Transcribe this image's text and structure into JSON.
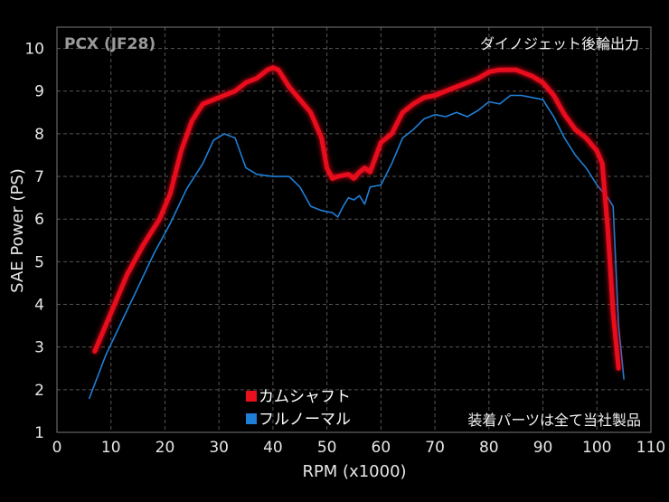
{
  "chart_data": {
    "type": "line",
    "title": "",
    "model_label": "PCX (JF28)",
    "top_note": "ダイノジェット後輪出力",
    "bottom_note": "装着パーツは全て当社製品",
    "xlabel": "RPM (x1000)",
    "ylabel": "SAE Power (PS)",
    "xlim": [
      0,
      110
    ],
    "ylim": [
      1,
      10.5
    ],
    "xticks": [
      "0",
      "10",
      "20",
      "30",
      "40",
      "50",
      "60",
      "70",
      "80",
      "90",
      "100",
      "110"
    ],
    "yticks": [
      "1",
      "2",
      "3",
      "4",
      "5",
      "6",
      "7",
      "8",
      "9",
      "10"
    ],
    "grid": true,
    "legend_position": "bottom-center",
    "series": [
      {
        "name": "カムシャフト",
        "color": "#e8101c",
        "x": [
          7,
          10,
          13,
          16,
          19,
          21,
          23,
          25,
          27,
          30,
          33,
          35,
          37,
          39,
          40,
          41,
          43,
          45,
          47,
          49,
          50,
          51,
          52,
          54,
          55,
          56,
          57,
          58,
          60,
          62,
          64,
          66,
          68,
          70,
          72,
          74,
          76,
          78,
          80,
          82,
          85,
          88,
          90,
          92,
          94,
          96,
          98,
          100,
          101,
          102,
          103,
          104
        ],
        "y": [
          2.9,
          3.8,
          4.7,
          5.4,
          6.0,
          6.6,
          7.6,
          8.3,
          8.7,
          8.85,
          9.0,
          9.2,
          9.3,
          9.5,
          9.55,
          9.5,
          9.1,
          8.8,
          8.5,
          7.9,
          7.2,
          6.95,
          7.0,
          7.05,
          6.95,
          7.1,
          7.2,
          7.1,
          7.8,
          8.0,
          8.5,
          8.7,
          8.85,
          8.9,
          9.0,
          9.1,
          9.2,
          9.3,
          9.45,
          9.5,
          9.5,
          9.35,
          9.2,
          8.9,
          8.45,
          8.1,
          7.9,
          7.6,
          7.3,
          5.8,
          3.8,
          2.5
        ]
      },
      {
        "name": "フルノーマル",
        "color": "#1f7fd6",
        "x": [
          6,
          9,
          12,
          15,
          18,
          21,
          24,
          27,
          29,
          31,
          33,
          35,
          37,
          40,
          43,
          45,
          47,
          49,
          51,
          52,
          53,
          54,
          55,
          56,
          57,
          58,
          60,
          62,
          64,
          66,
          68,
          70,
          72,
          74,
          76,
          78,
          80,
          82,
          84,
          86,
          88,
          90,
          92,
          94,
          96,
          98,
          100,
          102,
          103,
          104,
          105
        ],
        "y": [
          1.8,
          2.8,
          3.6,
          4.4,
          5.2,
          5.9,
          6.7,
          7.3,
          7.85,
          8.0,
          7.9,
          7.2,
          7.05,
          7.0,
          7.0,
          6.75,
          6.3,
          6.2,
          6.15,
          6.05,
          6.3,
          6.5,
          6.45,
          6.55,
          6.35,
          6.75,
          6.8,
          7.3,
          7.9,
          8.1,
          8.35,
          8.45,
          8.4,
          8.5,
          8.4,
          8.55,
          8.75,
          8.7,
          8.9,
          8.9,
          8.85,
          8.8,
          8.4,
          7.9,
          7.5,
          7.2,
          6.8,
          6.5,
          6.3,
          3.5,
          2.25
        ]
      }
    ]
  }
}
